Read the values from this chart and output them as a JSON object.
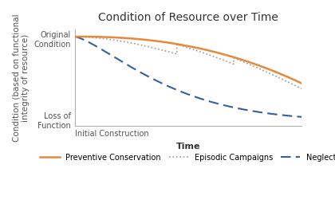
{
  "title": "Condition of Resource over Time",
  "xlabel": "Time",
  "ylabel": "Condition (based on functional\nintegrity of resource)",
  "ytick_labels": [
    "Loss of\nFunction",
    "Original\nCondition"
  ],
  "xtick_label": "Initial Construction",
  "ylim": [
    0,
    1
  ],
  "xlim": [
    0,
    1
  ],
  "background_color": "#ffffff",
  "preventive_color": "#E8883A",
  "episodic_color": "#9a9a9a",
  "neglect_color": "#3560A0",
  "legend_labels": [
    "Preventive Conservation",
    "Episodic Campaigns",
    "Neglect"
  ],
  "title_fontsize": 10,
  "axis_label_fontsize": 7.5,
  "tick_label_fontsize": 7,
  "legend_fontsize": 7
}
